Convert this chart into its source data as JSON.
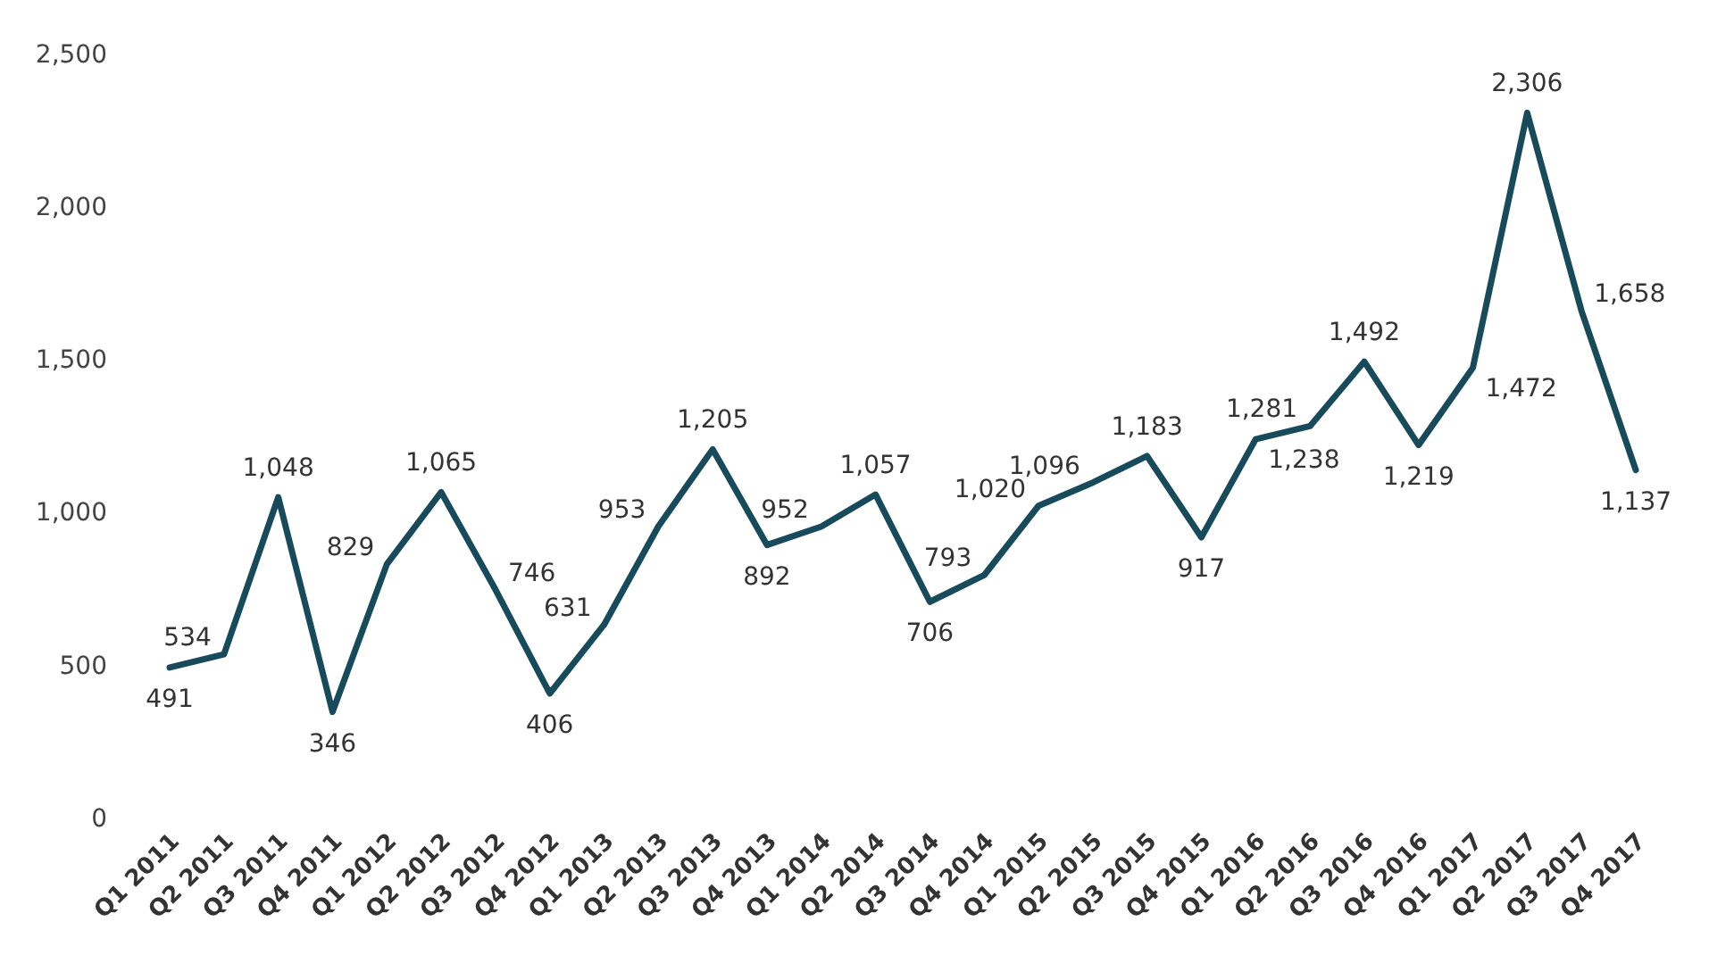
{
  "chart_data": {
    "type": "line",
    "categories": [
      "Q1 2011",
      "Q2 2011",
      "Q3 2011",
      "Q4 2011",
      "Q1 2012",
      "Q2 2012",
      "Q3 2012",
      "Q4 2012",
      "Q1 2013",
      "Q2 2013",
      "Q3 2013",
      "Q4 2013",
      "Q1 2014",
      "Q2 2014",
      "Q3 2014",
      "Q4 2014",
      "Q1 2015",
      "Q2 2015",
      "Q3 2015",
      "Q4 2015",
      "Q1 2016",
      "Q2 2016",
      "Q3 2016",
      "Q4 2016",
      "Q1 2017",
      "Q2 2017",
      "Q3 2017",
      "Q4 2017"
    ],
    "series": [
      {
        "color": "#174b5b",
        "values": [
          491,
          534,
          1048,
          346,
          829,
          1065,
          746,
          406,
          631,
          953,
          1205,
          892,
          952,
          1057,
          706,
          793,
          1020,
          1096,
          1183,
          917,
          1238,
          1281,
          1492,
          1219,
          1472,
          2306,
          1658,
          1137
        ],
        "value_labels": [
          "491",
          "534",
          "1,048",
          "346",
          "829",
          "1,065",
          "746",
          "406",
          "631",
          "953",
          "1,205",
          "892",
          "952",
          "1,057",
          "706",
          "793",
          "1,020",
          "1,096",
          "1,183",
          "917",
          "1,238",
          "1,281",
          "1,492",
          "1,219",
          "1,472",
          "2,306",
          "1,658",
          "1,137"
        ]
      }
    ],
    "ylim": [
      0,
      2500
    ],
    "yticks": [
      0,
      500,
      {
        "value": 1000,
        "label": "1,000"
      },
      {
        "value": 1500,
        "label": "1,500"
      },
      {
        "value": 2000,
        "label": "2,000"
      },
      {
        "value": 2500,
        "label": "2,500"
      }
    ],
    "grid": false,
    "marker": "none",
    "line_style": "solid"
  }
}
